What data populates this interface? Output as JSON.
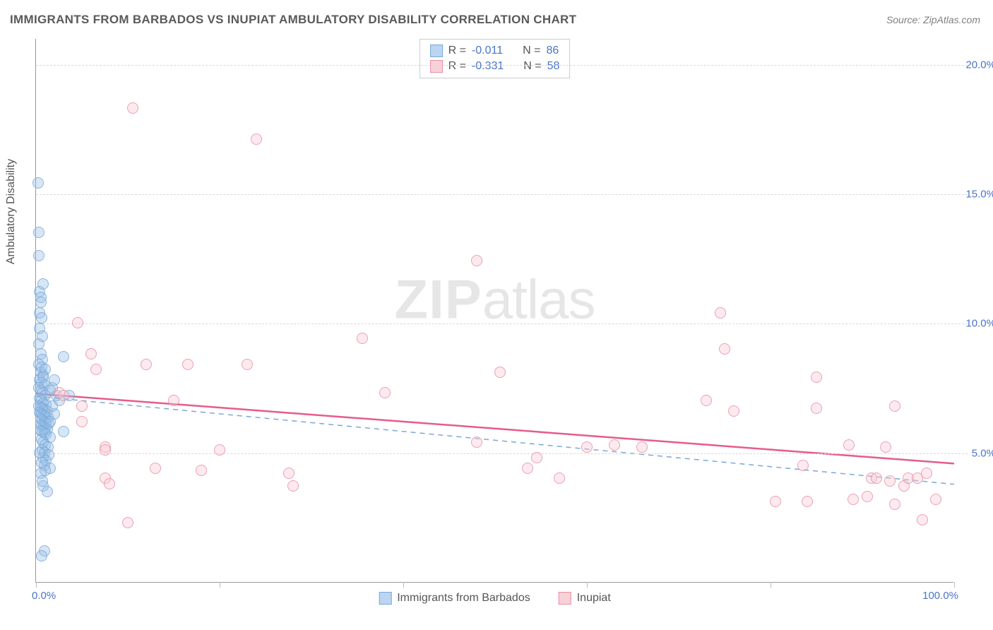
{
  "title": "IMMIGRANTS FROM BARBADOS VS INUPIAT AMBULATORY DISABILITY CORRELATION CHART",
  "source_label": "Source: ",
  "source_name": "ZipAtlas.com",
  "y_axis_title": "Ambulatory Disability",
  "watermark_a": "ZIP",
  "watermark_b": "atlas",
  "chart": {
    "type": "scatter",
    "xlim": [
      0,
      100
    ],
    "ylim": [
      0,
      21
    ],
    "x_ticks": [
      0,
      20,
      40,
      60,
      80,
      100
    ],
    "x_tick_labels": [
      "0.0%",
      "",
      "",
      "",
      "",
      "100.0%"
    ],
    "y_ticks": [
      5,
      10,
      15,
      20
    ],
    "y_tick_labels": [
      "5.0%",
      "10.0%",
      "15.0%",
      "20.0%"
    ],
    "grid_color": "#d8d8d8",
    "background_color": "#ffffff",
    "marker_size": 16,
    "series": [
      {
        "name": "Immigrants from Barbados",
        "color_fill": "#bcd5f0",
        "color_stroke": "#7aa8d8",
        "R": "-0.011",
        "N": "86",
        "trend": {
          "style": "dashed",
          "color": "#7aa8d8",
          "width": 1.5,
          "y_at_x0": 7.2,
          "y_at_x100": 3.8
        },
        "points": [
          [
            0.2,
            15.4
          ],
          [
            0.3,
            13.5
          ],
          [
            0.3,
            12.6
          ],
          [
            0.4,
            11.2
          ],
          [
            0.5,
            11.0
          ],
          [
            0.4,
            10.4
          ],
          [
            0.6,
            10.2
          ],
          [
            0.3,
            9.2
          ],
          [
            0.5,
            8.8
          ],
          [
            0.7,
            8.6
          ],
          [
            0.3,
            8.4
          ],
          [
            0.5,
            8.1
          ],
          [
            0.8,
            8.0
          ],
          [
            0.4,
            7.8
          ],
          [
            0.6,
            7.7
          ],
          [
            0.9,
            7.6
          ],
          [
            0.3,
            7.5
          ],
          [
            0.5,
            7.4
          ],
          [
            0.7,
            7.3
          ],
          [
            1.0,
            7.2
          ],
          [
            0.4,
            7.1
          ],
          [
            0.6,
            7.0
          ],
          [
            0.8,
            6.9
          ],
          [
            1.1,
            6.85
          ],
          [
            0.3,
            6.8
          ],
          [
            0.5,
            6.75
          ],
          [
            0.7,
            6.7
          ],
          [
            0.9,
            6.65
          ],
          [
            1.2,
            6.6
          ],
          [
            0.4,
            6.55
          ],
          [
            0.6,
            6.5
          ],
          [
            0.8,
            6.45
          ],
          [
            1.0,
            6.4
          ],
          [
            1.3,
            6.35
          ],
          [
            0.5,
            6.3
          ],
          [
            0.7,
            6.25
          ],
          [
            0.9,
            6.2
          ],
          [
            1.1,
            6.15
          ],
          [
            1.4,
            6.1
          ],
          [
            0.6,
            6.05
          ],
          [
            0.8,
            6.0
          ],
          [
            1.0,
            5.95
          ],
          [
            1.2,
            5.9
          ],
          [
            0.5,
            5.85
          ],
          [
            0.7,
            5.8
          ],
          [
            0.9,
            5.75
          ],
          [
            1.1,
            5.7
          ],
          [
            1.5,
            5.6
          ],
          [
            0.6,
            5.5
          ],
          [
            0.8,
            5.4
          ],
          [
            1.0,
            5.3
          ],
          [
            1.3,
            5.2
          ],
          [
            0.7,
            5.1
          ],
          [
            0.9,
            5.0
          ],
          [
            1.4,
            4.9
          ],
          [
            0.8,
            4.8
          ],
          [
            1.1,
            4.7
          ],
          [
            0.9,
            4.5
          ],
          [
            1.5,
            4.4
          ],
          [
            1.0,
            4.3
          ],
          [
            2.2,
            7.2
          ],
          [
            0.8,
            3.7
          ],
          [
            1.2,
            3.5
          ],
          [
            0.9,
            1.2
          ],
          [
            0.6,
            1.0
          ],
          [
            3.0,
            8.7
          ],
          [
            3.0,
            5.8
          ],
          [
            3.6,
            7.2
          ],
          [
            2.0,
            6.5
          ],
          [
            2.5,
            7.0
          ],
          [
            1.8,
            7.5
          ],
          [
            1.8,
            6.8
          ],
          [
            1.5,
            6.2
          ],
          [
            1.5,
            7.4
          ],
          [
            2.0,
            7.8
          ],
          [
            0.4,
            9.8
          ],
          [
            0.7,
            9.5
          ],
          [
            0.5,
            10.8
          ],
          [
            0.8,
            11.5
          ],
          [
            0.6,
            8.3
          ],
          [
            1.0,
            8.2
          ],
          [
            0.8,
            7.9
          ],
          [
            0.4,
            5.0
          ],
          [
            0.6,
            4.6
          ],
          [
            0.5,
            4.2
          ],
          [
            0.7,
            3.9
          ]
        ]
      },
      {
        "name": "Inupiat",
        "color_fill": "#f8d0d8",
        "color_stroke": "#e890a5",
        "R": "-0.331",
        "N": "58",
        "trend": {
          "style": "solid",
          "color": "#e65c8a",
          "width": 2.5,
          "y_at_x0": 7.3,
          "y_at_x100": 4.6
        },
        "points": [
          [
            10.5,
            18.3
          ],
          [
            24.0,
            17.1
          ],
          [
            4.5,
            10.0
          ],
          [
            5.0,
            6.8
          ],
          [
            5.0,
            6.2
          ],
          [
            6.0,
            8.8
          ],
          [
            6.5,
            8.2
          ],
          [
            7.5,
            5.2
          ],
          [
            7.5,
            5.1
          ],
          [
            7.5,
            4.0
          ],
          [
            8.0,
            3.8
          ],
          [
            10.0,
            2.3
          ],
          [
            12.0,
            8.4
          ],
          [
            13.0,
            4.4
          ],
          [
            15.0,
            7.0
          ],
          [
            16.5,
            8.4
          ],
          [
            18.0,
            4.3
          ],
          [
            20.0,
            5.1
          ],
          [
            23.0,
            8.4
          ],
          [
            27.5,
            4.2
          ],
          [
            28.0,
            3.7
          ],
          [
            35.5,
            9.4
          ],
          [
            38.0,
            7.3
          ],
          [
            48.0,
            12.4
          ],
          [
            48.0,
            5.4
          ],
          [
            50.5,
            8.1
          ],
          [
            53.5,
            4.4
          ],
          [
            54.5,
            4.8
          ],
          [
            57.0,
            4.0
          ],
          [
            60.0,
            5.2
          ],
          [
            63.0,
            5.3
          ],
          [
            66.0,
            5.2
          ],
          [
            73.0,
            7.0
          ],
          [
            74.5,
            10.4
          ],
          [
            75.0,
            9.0
          ],
          [
            76.0,
            6.6
          ],
          [
            80.5,
            3.1
          ],
          [
            83.5,
            4.5
          ],
          [
            84.0,
            3.1
          ],
          [
            85.0,
            7.9
          ],
          [
            85.0,
            6.7
          ],
          [
            88.5,
            5.3
          ],
          [
            89.0,
            3.2
          ],
          [
            90.5,
            3.3
          ],
          [
            91.0,
            4.0
          ],
          [
            91.5,
            4.0
          ],
          [
            92.5,
            5.2
          ],
          [
            93.0,
            3.9
          ],
          [
            93.5,
            3.0
          ],
          [
            93.5,
            6.8
          ],
          [
            94.5,
            3.7
          ],
          [
            95.0,
            4.0
          ],
          [
            96.0,
            4.0
          ],
          [
            96.5,
            2.4
          ],
          [
            97.0,
            4.2
          ],
          [
            98.0,
            3.2
          ],
          [
            2.5,
            7.3
          ],
          [
            3.0,
            7.2
          ]
        ]
      }
    ]
  },
  "legend_top": {
    "r_label": "R = ",
    "n_label": "N = "
  },
  "legend_bottom": {
    "series1": "Immigrants from Barbados",
    "series2": "Inupiat"
  }
}
